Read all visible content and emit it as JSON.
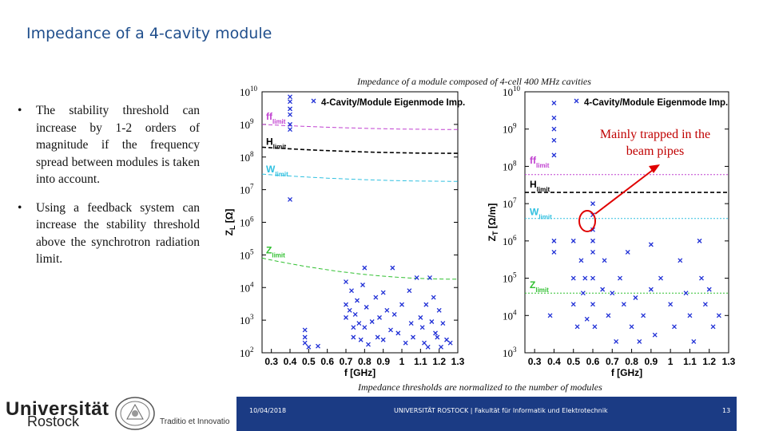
{
  "slide": {
    "title": "Impedance of a 4-cavity module",
    "top_caption": "Impedance of a module composed of 4-cell 400 MHz cavities",
    "bottom_caption": "Impedance thresholds are normalized to the number of modules",
    "bullets": [
      "The stability threshold can increase by 1-2 orders of magnitude if the frequency spread between modules is taken into account.",
      "Using a feedback system can increase the stability threshold above the synchrotron radiation limit."
    ],
    "bullet_symbol": "•",
    "callout": "Mainly trapped in the beam pipes",
    "footer": {
      "date": "10/04/2018",
      "institution": "UNIVERSITÄT ROSTOCK | Fakultät für Informatik und Elektrotechnik",
      "page": "13",
      "logo_line1": "Universität",
      "logo_line2": "Rostock",
      "motto": "Traditio et Innovatio"
    },
    "colors": {
      "title": "#1f4e8c",
      "markers": "#1f2fd6",
      "callout": "#c00000",
      "footer": "#1b3b84"
    }
  },
  "chart_data": [
    {
      "type": "scatter",
      "title": "",
      "legend": "4-Cavity/Module Eigenmode Imp.",
      "xlabel": "f [GHz]",
      "ylabel": "ZL [Ω]",
      "ylabel_main": "Z",
      "ylabel_sub": "L",
      "ylabel_unit": " [Ω]",
      "xscale": "linear",
      "yscale": "log",
      "xlim": [
        0.25,
        1.3
      ],
      "ylim": [
        100,
        10000000000
      ],
      "xticks": [
        0.3,
        0.4,
        0.5,
        0.6,
        0.7,
        0.8,
        0.9,
        1,
        1.1,
        1.2,
        1.3
      ],
      "xtick_labels": [
        "0.3",
        "0.4",
        "0.5",
        "0.6",
        "0.7",
        "0.8",
        "0.9",
        "1",
        "1.1",
        "1.2",
        "1.3"
      ],
      "yticks": [
        100,
        1000,
        10000,
        100000,
        1000000,
        10000000,
        100000000,
        1000000000,
        10000000000
      ],
      "ytick_exponents": [
        "2",
        "3",
        "4",
        "5",
        "6",
        "7",
        "8",
        "9",
        "10"
      ],
      "ytick_base": "10",
      "threshold_lines": [
        {
          "name": "ff",
          "subscript": "limit",
          "color": "#c040d0",
          "style": "dashed",
          "start": 1000000000,
          "end": 700000000
        },
        {
          "name": "H",
          "subscript": "limit",
          "color": "#000000",
          "style": "dashed",
          "start": 200000000,
          "end": 130000000
        },
        {
          "name": "W",
          "subscript": "limit",
          "color": "#30c0e0",
          "style": "dashed",
          "start": 30000000,
          "end": 18000000
        },
        {
          "name": "Z",
          "subscript": "limit",
          "color": "#30c030",
          "style": "dashed",
          "start": 80000,
          "end": 18000
        }
      ],
      "points": [
        [
          0.4,
          5000000000
        ],
        [
          0.4,
          2000000000
        ],
        [
          0.4,
          1000000000
        ],
        [
          0.4,
          700000000
        ],
        [
          0.4,
          5000000
        ],
        [
          0.4,
          7000000000
        ],
        [
          0.4,
          3000000000
        ],
        [
          0.48,
          500
        ],
        [
          0.48,
          300
        ],
        [
          0.48,
          200
        ],
        [
          0.5,
          150
        ],
        [
          0.55,
          160
        ],
        [
          0.7,
          15000
        ],
        [
          0.7,
          3000
        ],
        [
          0.7,
          1200
        ],
        [
          0.72,
          2000
        ],
        [
          0.73,
          8000
        ],
        [
          0.74,
          600
        ],
        [
          0.74,
          300
        ],
        [
          0.75,
          1500
        ],
        [
          0.76,
          4000
        ],
        [
          0.77,
          800
        ],
        [
          0.78,
          250
        ],
        [
          0.79,
          12000
        ],
        [
          0.8,
          40000
        ],
        [
          0.8,
          600
        ],
        [
          0.81,
          2500
        ],
        [
          0.82,
          180
        ],
        [
          0.84,
          900
        ],
        [
          0.86,
          5000
        ],
        [
          0.87,
          300
        ],
        [
          0.88,
          1200
        ],
        [
          0.9,
          7000
        ],
        [
          0.9,
          250
        ],
        [
          0.92,
          2000
        ],
        [
          0.94,
          500
        ],
        [
          0.95,
          40000
        ],
        [
          0.96,
          1500
        ],
        [
          0.98,
          400
        ],
        [
          1.0,
          3000
        ],
        [
          1.02,
          200
        ],
        [
          1.04,
          8000
        ],
        [
          1.05,
          800
        ],
        [
          1.06,
          300
        ],
        [
          1.08,
          20000
        ],
        [
          1.1,
          1200
        ],
        [
          1.11,
          600
        ],
        [
          1.12,
          200
        ],
        [
          1.13,
          3000
        ],
        [
          1.14,
          150
        ],
        [
          1.15,
          20000
        ],
        [
          1.16,
          900
        ],
        [
          1.17,
          5000
        ],
        [
          1.18,
          400
        ],
        [
          1.19,
          300
        ],
        [
          1.2,
          2000
        ],
        [
          1.21,
          150
        ],
        [
          1.22,
          800
        ],
        [
          1.24,
          250
        ],
        [
          1.26,
          200
        ]
      ]
    },
    {
      "type": "scatter",
      "title": "",
      "legend": "4-Cavity/Module Eigenmode Imp.",
      "xlabel": "f [GHz]",
      "ylabel": "ZT [Ω/m]",
      "ylabel_main": "Z",
      "ylabel_sub": "T",
      "ylabel_unit": " [Ω/m]",
      "xscale": "linear",
      "yscale": "log",
      "xlim": [
        0.25,
        1.3
      ],
      "ylim": [
        1000,
        10000000000
      ],
      "xticks": [
        0.3,
        0.4,
        0.5,
        0.6,
        0.7,
        0.8,
        0.9,
        1,
        1.1,
        1.2,
        1.3
      ],
      "xtick_labels": [
        "0.3",
        "0.4",
        "0.5",
        "0.6",
        "0.7",
        "0.8",
        "0.9",
        "1",
        "1.1",
        "1.2",
        "1.3"
      ],
      "yticks": [
        1000,
        10000,
        100000,
        1000000,
        10000000,
        100000000,
        1000000000,
        10000000000
      ],
      "ytick_exponents": [
        "3",
        "4",
        "5",
        "6",
        "7",
        "8",
        "9",
        "10"
      ],
      "ytick_base": "10",
      "threshold_lines": [
        {
          "name": "ff",
          "subscript": "limit",
          "color": "#c040d0",
          "style": "dotted",
          "start": 60000000,
          "end": 60000000
        },
        {
          "name": "H",
          "subscript": "limit",
          "color": "#000000",
          "style": "dashed",
          "start": 20000000,
          "end": 20000000
        },
        {
          "name": "W",
          "subscript": "limit",
          "color": "#30c0e0",
          "style": "dotted",
          "start": 4000000,
          "end": 4000000
        },
        {
          "name": "Z",
          "subscript": "limit",
          "color": "#30c030",
          "style": "dotted",
          "start": 40000,
          "end": 40000
        }
      ],
      "points": [
        [
          0.4,
          5000000000
        ],
        [
          0.4,
          2000000000
        ],
        [
          0.4,
          1000000000
        ],
        [
          0.4,
          500000000
        ],
        [
          0.4,
          200000000
        ],
        [
          0.4,
          1000000
        ],
        [
          0.4,
          500000
        ],
        [
          0.38,
          10000
        ],
        [
          0.5,
          1000000
        ],
        [
          0.5,
          100000
        ],
        [
          0.5,
          20000
        ],
        [
          0.52,
          5000
        ],
        [
          0.54,
          300000
        ],
        [
          0.55,
          40000
        ],
        [
          0.56,
          100000
        ],
        [
          0.57,
          8000
        ],
        [
          0.6,
          10000000
        ],
        [
          0.6,
          5000000
        ],
        [
          0.6,
          2000000
        ],
        [
          0.6,
          1000000
        ],
        [
          0.6,
          500000
        ],
        [
          0.6,
          100000
        ],
        [
          0.6,
          20000
        ],
        [
          0.61,
          5000
        ],
        [
          0.65,
          50000
        ],
        [
          0.66,
          300000
        ],
        [
          0.68,
          10000
        ],
        [
          0.7,
          40000
        ],
        [
          0.72,
          2000
        ],
        [
          0.74,
          100000
        ],
        [
          0.76,
          20000
        ],
        [
          0.78,
          500000
        ],
        [
          0.8,
          5000
        ],
        [
          0.82,
          30000
        ],
        [
          0.84,
          2000
        ],
        [
          0.86,
          10000
        ],
        [
          0.9,
          800000
        ],
        [
          0.9,
          50000
        ],
        [
          0.92,
          3000
        ],
        [
          0.95,
          100000
        ],
        [
          1.0,
          20000
        ],
        [
          1.02,
          5000
        ],
        [
          1.05,
          300000
        ],
        [
          1.08,
          40000
        ],
        [
          1.1,
          10000
        ],
        [
          1.12,
          2000
        ],
        [
          1.15,
          1000000
        ],
        [
          1.16,
          100000
        ],
        [
          1.18,
          20000
        ],
        [
          1.2,
          50000
        ],
        [
          1.22,
          5000
        ],
        [
          1.25,
          10000
        ]
      ]
    }
  ]
}
